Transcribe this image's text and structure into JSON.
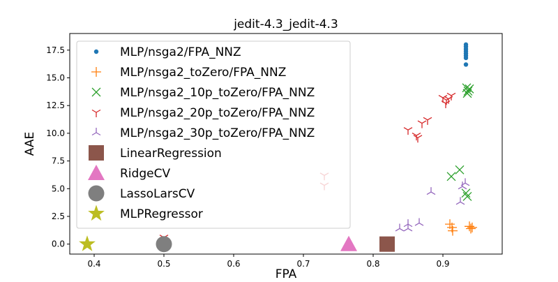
{
  "chart_data": {
    "type": "scatter",
    "title": "jedit-4.3_jedit-4.3",
    "xlabel": "FPA",
    "ylabel": "AAE",
    "xlim": [
      0.365,
      0.985
    ],
    "ylim": [
      -0.9,
      19.0
    ],
    "xticks": [
      0.4,
      0.5,
      0.6,
      0.7,
      0.8,
      0.9
    ],
    "xtick_labels": [
      "0.4",
      "0.5",
      "0.6",
      "0.7",
      "0.8",
      "0.9"
    ],
    "yticks": [
      0.0,
      2.5,
      5.0,
      7.5,
      10.0,
      12.5,
      15.0,
      17.5
    ],
    "ytick_labels": [
      "0.0",
      "2.5",
      "5.0",
      "7.5",
      "10.0",
      "12.5",
      "15.0",
      "17.5"
    ],
    "grid": false,
    "legend_position": "upper-left",
    "series": [
      {
        "name": "MLP/nsga2/FPA_NNZ",
        "marker": "dot",
        "color": "#1f77b4",
        "points": [
          [
            0.933,
            18.0
          ],
          [
            0.933,
            17.8
          ],
          [
            0.933,
            17.6
          ],
          [
            0.933,
            17.4
          ],
          [
            0.933,
            17.2
          ],
          [
            0.933,
            17.0
          ],
          [
            0.933,
            16.8
          ],
          [
            0.933,
            16.2
          ]
        ]
      },
      {
        "name": "MLP/nsga2_toZero/FPA_NNZ",
        "marker": "plus",
        "color": "#ff7f0e",
        "points": [
          [
            0.91,
            1.8
          ],
          [
            0.913,
            1.5
          ],
          [
            0.914,
            1.2
          ],
          [
            0.938,
            1.6
          ],
          [
            0.94,
            1.4
          ],
          [
            0.942,
            1.5
          ]
        ]
      },
      {
        "name": "MLP/nsga2_10p_toZero/FPA_NNZ",
        "marker": "x",
        "color": "#2ca02c",
        "points": [
          [
            0.912,
            6.1
          ],
          [
            0.924,
            6.7
          ],
          [
            0.933,
            4.6
          ],
          [
            0.935,
            4.3
          ],
          [
            0.934,
            14.1
          ],
          [
            0.936,
            13.8
          ],
          [
            0.935,
            13.6
          ],
          [
            0.938,
            14.0
          ]
        ]
      },
      {
        "name": "MLP/nsga2_20p_toZero/FPA_NNZ",
        "marker": "tri-down",
        "color": "#d62728",
        "points": [
          [
            0.9,
            13.2
          ],
          [
            0.905,
            13.0
          ],
          [
            0.904,
            12.7
          ],
          [
            0.908,
            13.1
          ],
          [
            0.912,
            13.4
          ],
          [
            0.878,
            11.2
          ],
          [
            0.87,
            10.9
          ],
          [
            0.85,
            10.3
          ],
          [
            0.862,
            9.8
          ],
          [
            0.864,
            9.6
          ],
          [
            0.73,
            6.2
          ],
          [
            0.73,
            5.3
          ],
          [
            0.5,
            0.6
          ]
        ]
      },
      {
        "name": "MLP/nsga2_30p_toZero/FPA_NNZ",
        "marker": "tri-up",
        "color": "#9467bd",
        "points": [
          [
            0.932,
            5.5
          ],
          [
            0.928,
            5.2
          ],
          [
            0.925,
            3.8
          ],
          [
            0.883,
            4.7
          ],
          [
            0.838,
            1.4
          ],
          [
            0.85,
            1.8
          ],
          [
            0.866,
            1.9
          ],
          [
            0.85,
            1.4
          ]
        ]
      },
      {
        "name": "LinearRegression",
        "marker": "square",
        "color": "#8c564b",
        "points": [
          [
            0.82,
            0.0
          ]
        ]
      },
      {
        "name": "RidgeCV",
        "marker": "triangle",
        "color": "#e377c2",
        "points": [
          [
            0.765,
            0.0
          ]
        ]
      },
      {
        "name": "LassoLarsCV",
        "marker": "circle",
        "color": "#7f7f7f",
        "points": [
          [
            0.5,
            0.0
          ]
        ]
      },
      {
        "name": "MLPRegressor",
        "marker": "star",
        "color": "#bcbd22",
        "points": [
          [
            0.39,
            0.0
          ]
        ]
      }
    ]
  }
}
